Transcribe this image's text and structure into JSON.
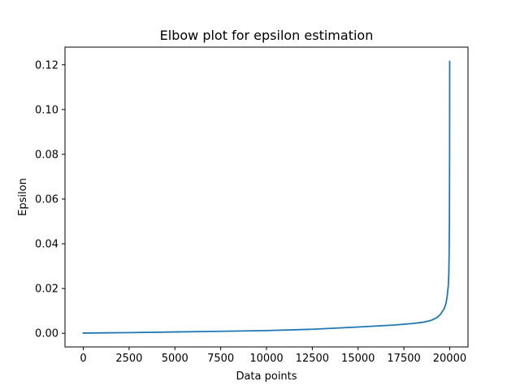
{
  "chart_data": {
    "type": "line",
    "title": "Elbow plot for epsilon estimation",
    "xlabel": "Data points",
    "ylabel": "Epsilon",
    "xlim": [
      -1000,
      21000
    ],
    "ylim": [
      -0.0061,
      0.1279
    ],
    "grid": false,
    "x_ticks": [
      0,
      2500,
      5000,
      7500,
      10000,
      12500,
      15000,
      17500,
      20000
    ],
    "y_ticks": [
      0.0,
      0.02,
      0.04,
      0.06,
      0.08,
      0.1,
      0.12
    ],
    "x_tick_labels": [
      "0",
      "2500",
      "5000",
      "7500",
      "10000",
      "12500",
      "15000",
      "17500",
      "20000"
    ],
    "y_tick_labels": [
      "0.00",
      "0.02",
      "0.04",
      "0.06",
      "0.08",
      "0.10",
      "0.12"
    ],
    "series": [
      {
        "color": "#1f77b4",
        "x": [
          0,
          2500,
          5000,
          7500,
          10000,
          12500,
          15000,
          17000,
          18000,
          18600,
          19000,
          19300,
          19500,
          19700,
          19800,
          19870,
          19920,
          19950,
          19970,
          19985,
          19995,
          20000
        ],
        "y": [
          0.0001,
          0.0003,
          0.0006,
          0.0009,
          0.0012,
          0.0018,
          0.0028,
          0.0037,
          0.0044,
          0.005,
          0.0058,
          0.007,
          0.0085,
          0.011,
          0.0135,
          0.017,
          0.021,
          0.026,
          0.035,
          0.05,
          0.08,
          0.1215
        ]
      }
    ]
  }
}
